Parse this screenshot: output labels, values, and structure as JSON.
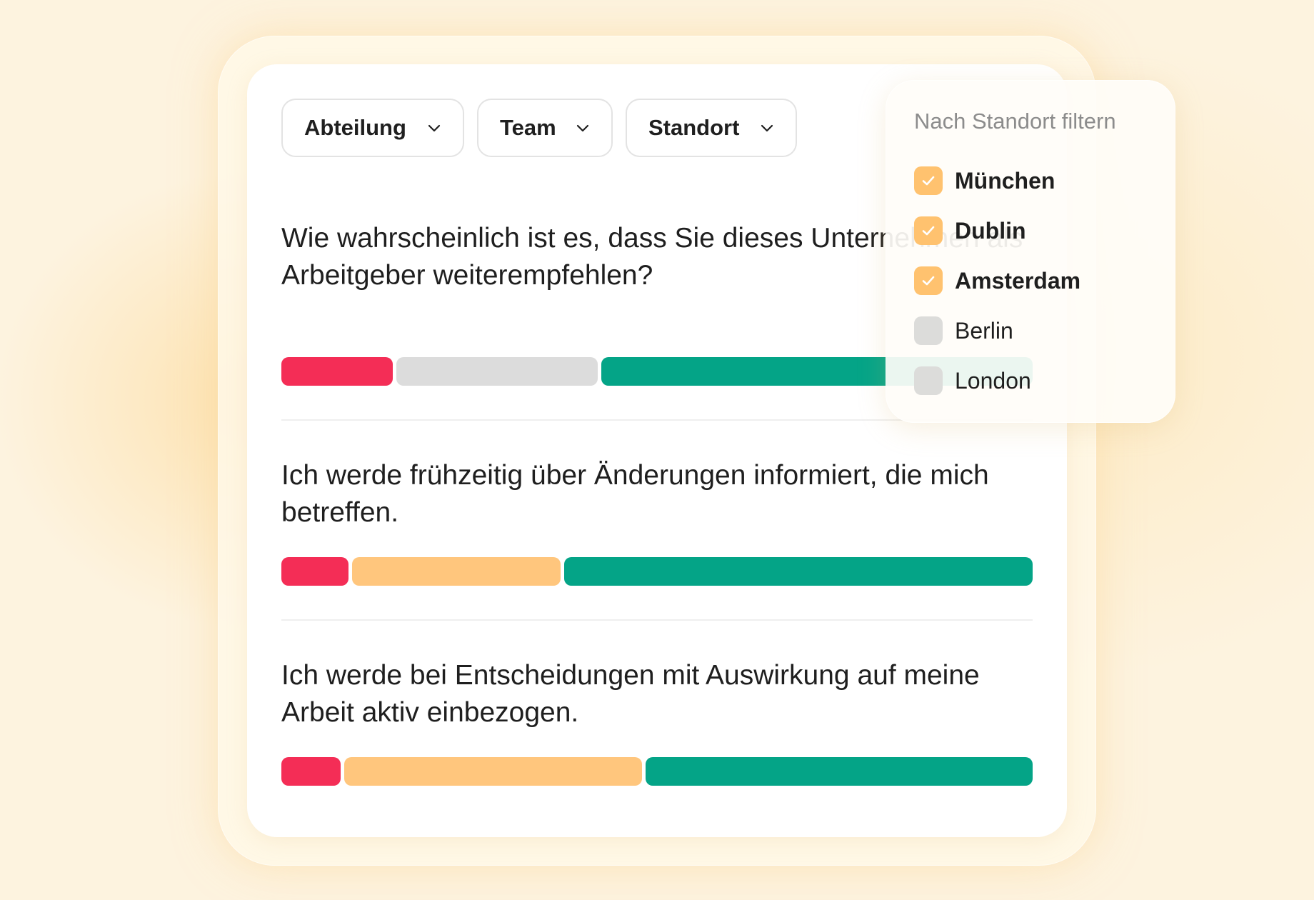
{
  "filters": {
    "abteilung": "Abteilung",
    "team": "Team",
    "standort": "Standort"
  },
  "questions": [
    {
      "text": "Wie wahrscheinlich ist es, dass Sie dieses Unternehmen als Arbeitgeber weiterempfehlen?",
      "segments": [
        {
          "value": 0.15,
          "color": "#f42d56"
        },
        {
          "value": 0.27,
          "color": "#dcdcdc"
        },
        {
          "value": 0.58,
          "color": "#04a487"
        }
      ]
    },
    {
      "text": "Ich werde frühzeitig über Änderungen informiert, die mich betreffen.",
      "segments": [
        {
          "value": 0.09,
          "color": "#f42d56"
        },
        {
          "value": 0.28,
          "color": "#ffc67d"
        },
        {
          "value": 0.63,
          "color": "#04a487"
        }
      ]
    },
    {
      "text": "Ich werde bei Entscheidungen mit Auswirkung auf meine Arbeit aktiv einbezogen.",
      "segments": [
        {
          "value": 0.08,
          "color": "#f42d56"
        },
        {
          "value": 0.4,
          "color": "#ffc67d"
        },
        {
          "value": 0.52,
          "color": "#04a487"
        }
      ]
    }
  ],
  "location_filter": {
    "title": "Nach Standort filtern",
    "options": [
      {
        "label": "München",
        "checked": true
      },
      {
        "label": "Dublin",
        "checked": true
      },
      {
        "label": "Amsterdam",
        "checked": true
      },
      {
        "label": "Berlin",
        "checked": false
      },
      {
        "label": "London",
        "checked": false
      }
    ]
  },
  "colors": {
    "negative": "#f42d56",
    "neutral_grey": "#dcdcdc",
    "neutral_orange": "#ffc67d",
    "positive": "#04a487",
    "checkbox_on": "#ffc26f",
    "checkbox_off": "#dcdcda"
  }
}
